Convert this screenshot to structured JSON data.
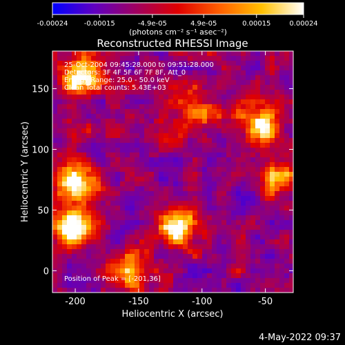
{
  "chart_data": {
    "type": "heatmap",
    "title": "Reconstructed RHESSI Image",
    "colorbar": {
      "ticks": [
        "-0.00024",
        "-0.00015",
        "-4.9e-05",
        "4.9e-05",
        "0.00015",
        "0.00024"
      ],
      "tick_values": [
        -0.00024,
        -0.00015,
        -4.9e-05,
        4.9e-05,
        0.00015,
        0.00024
      ],
      "range": [
        -0.00024,
        0.00024
      ],
      "unit_label": "(photons cm⁻² s⁻¹ asec⁻²)",
      "colormap": [
        "#0000ff",
        "#6000c0",
        "#a00060",
        "#e00000",
        "#ff6000",
        "#ffc000",
        "#ffffff"
      ]
    },
    "xlabel": "Heliocentric X (arcsec)",
    "ylabel": "Heliocentric Y (arcsec)",
    "xlim": [
      -218,
      -28
    ],
    "ylim": [
      -18,
      181
    ],
    "x_ticks": [
      -200,
      -150,
      -100,
      -50
    ],
    "y_ticks": [
      0,
      50,
      100,
      150
    ],
    "annotations": [
      "25-Oct-2004 09:45:28.000 to 09:51:28.000",
      "Detectors: 3F 4F 5F 6F 7F 8F, Att_0",
      "Energy Range: 25.0 - 50.0 keV",
      "Clean    Total counts: 5.43E+03"
    ],
    "peak_label": "Position of Peak = [-201,36]",
    "bright_sources": [
      {
        "x": -195,
        "y": 160,
        "intensity": 0.8
      },
      {
        "x": -200,
        "y": 36,
        "intensity": 1.0
      },
      {
        "x": -197,
        "y": 72,
        "intensity": 0.85
      },
      {
        "x": -118,
        "y": 38,
        "intensity": 0.95
      },
      {
        "x": -105,
        "y": 130,
        "intensity": 0.6
      },
      {
        "x": -55,
        "y": 120,
        "intensity": 0.65
      },
      {
        "x": -40,
        "y": 78,
        "intensity": 0.55
      },
      {
        "x": -160,
        "y": 0,
        "intensity": 0.6
      }
    ]
  },
  "footer": {
    "timestamp": "4-May-2022 09:37"
  }
}
